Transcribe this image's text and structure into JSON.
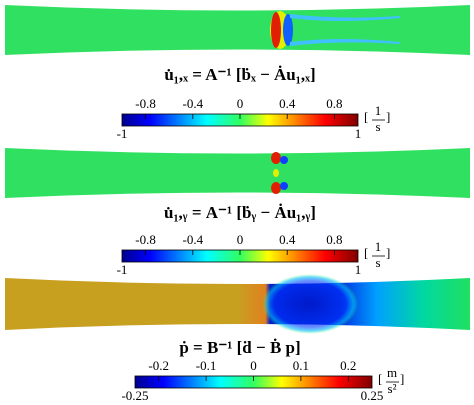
{
  "panels": [
    {
      "equation": "u̇₁,ₓ = A⁻¹ [ḃₓ − Ȧu₁,ₓ]",
      "colorbar": {
        "lim": [
          -1,
          1
        ],
        "ticks": [
          -0.8,
          -0.4,
          0,
          0.4,
          0.8
        ],
        "unit_numerator": "1",
        "unit_denominator": "s"
      }
    },
    {
      "equation": "u̇₁,ᵧ = A⁻¹ [ḃᵧ − Ȧu₁,ᵧ]",
      "colorbar": {
        "lim": [
          -1,
          1
        ],
        "ticks": [
          -0.8,
          -0.4,
          0,
          0.4,
          0.8
        ],
        "unit_numerator": "1",
        "unit_denominator": "s"
      }
    },
    {
      "equation": "ṗ = B⁻¹ [ḋ − Ḃ p]",
      "colorbar": {
        "lim": [
          -0.25,
          0.25
        ],
        "ticks": [
          -0.2,
          -0.1,
          0,
          0.1,
          0.2
        ],
        "unit_numerator": "m",
        "unit_denominator": "s²"
      }
    }
  ]
}
